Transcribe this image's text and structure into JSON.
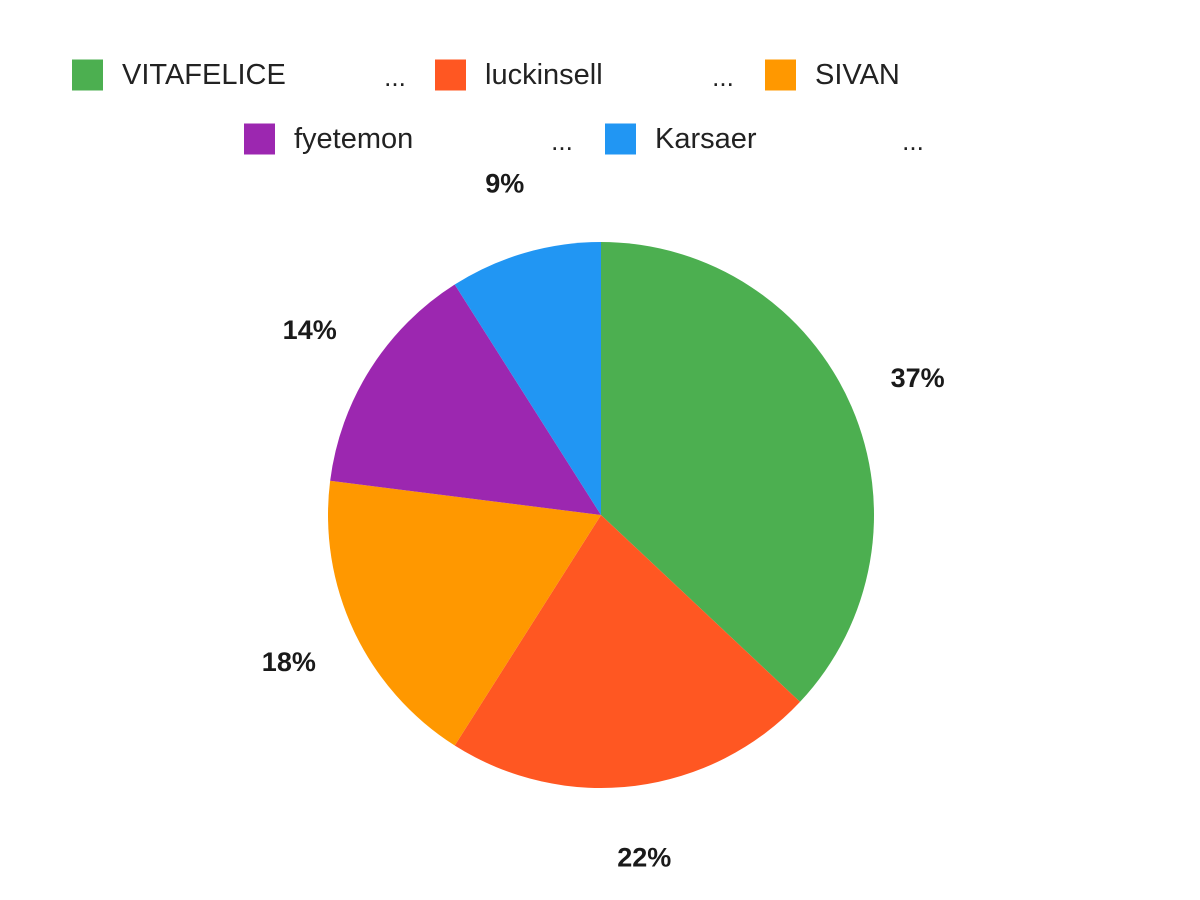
{
  "chart_data": {
    "type": "pie",
    "title": "",
    "legend_position": "top",
    "legend_truncation": "...",
    "slices": [
      {
        "label": "VITAFELICE",
        "percent": 37,
        "display": "37%",
        "color": "#4CAF50"
      },
      {
        "label": "luckinsell",
        "percent": 22,
        "display": "22%",
        "color": "#FF5722"
      },
      {
        "label": "SIVAN",
        "percent": 18,
        "display": "18%",
        "color": "#FF9800"
      },
      {
        "label": "fyetemon",
        "percent": 14,
        "display": "14%",
        "color": "#9C27B0"
      },
      {
        "label": "Karsaer",
        "percent": 9,
        "display": "9%",
        "color": "#2196F3"
      }
    ]
  }
}
